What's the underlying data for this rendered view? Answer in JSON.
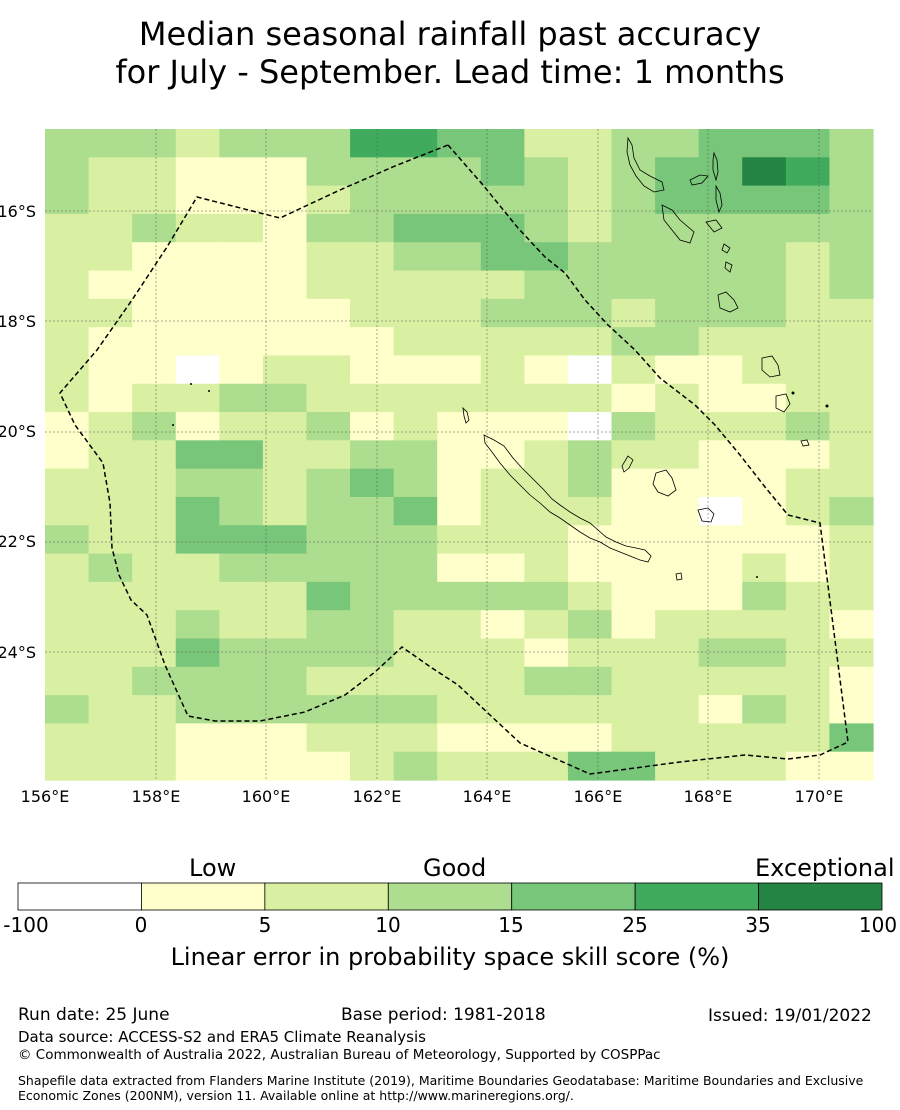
{
  "title": {
    "line1": "Median seasonal rainfall past accuracy",
    "line2": "for July - September. Lead time: 1 months"
  },
  "map": {
    "lat_labels": [
      "16°S",
      "18°S",
      "20°S",
      "22°S",
      "24°S"
    ],
    "lon_labels": [
      "156°E",
      "158°E",
      "160°E",
      "162°E",
      "164°E",
      "166°E",
      "168°E",
      "170°E"
    ],
    "grid_rows": [
      "3332333554422334443",
      "3221113333432344653",
      "3221112333332344443",
      "2232213344432333333",
      "2211112233443333323",
      "2111112222233333323",
      "2211111222333233322",
      "2111111122222332222",
      "2110122111210211222",
      "2122332222222121122",
      "1231223121110322232",
      "1224422331123221112",
      "2223323431223111122",
      "2224323341222110123",
      "3224443332221111112",
      "2322333331121111212",
      "2222224333332111322",
      "2223223322123122221",
      "2224333322212223322",
      "2233332222233222221",
      "3223333332222221321",
      "2221112221111222224",
      "2221111232224422211"
    ],
    "colors": [
      "#ffffff",
      "#ffffcc",
      "#d9f0a3",
      "#addd8e",
      "#78c679",
      "#41ab5d",
      "#238443"
    ]
  },
  "colorbar": {
    "categories": [
      "Low",
      "Good",
      "Exceptional"
    ],
    "ticks": [
      "-100",
      "0",
      "5",
      "10",
      "15",
      "25",
      "35",
      "100"
    ],
    "label": "Linear error in probability space skill score (%)"
  },
  "footer": {
    "run_date": "Run date: 25 June",
    "base_period": "Base period: 1981-2018",
    "issued": "Issued: 19/01/2022",
    "data_source": "Data source: ACCESS-S2 and ERA5 Climate Reanalysis",
    "copyright": "© Commonwealth of Australia 2022, Australian Bureau of Meteorology, Supported by COSPPac",
    "shapefile": "Shapefile data extracted from Flanders Marine Institute (2019), Maritime Boundaries Geodatabase: Maritime Boundaries and Exclusive Economic Zones (200NM), version 11. Available online at http://www.marineregions.org/."
  }
}
